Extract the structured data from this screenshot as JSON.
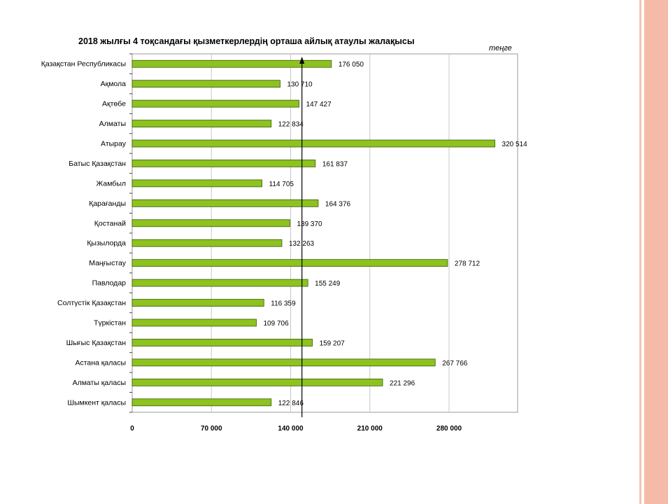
{
  "slide": {
    "accent_color": "#f6bba8",
    "line_color": "#f4c4b4"
  },
  "chart_data": {
    "type": "bar",
    "orientation": "horizontal",
    "title": "2018 жылғы  4  тоқсандағы қызметкерлердің орташа айлық атаулы жалақысы",
    "unit": "теңге",
    "categories": [
      "Қазақстан Республикасы",
      "Ақмола",
      "Ақтөбе",
      "Алматы",
      "Атырау",
      "Батыс Қазақстан",
      "Жамбыл",
      "Қарағанды",
      "Қостанай",
      "Қызылорда",
      "Маңғыстау",
      "Павлодар",
      "Солтүстік Қазақстан",
      "Түркістан",
      "Шығыс  Қазақстан",
      "Астана қаласы",
      "Алматы қаласы",
      "Шымкент қаласы"
    ],
    "values": [
      176050,
      130710,
      147427,
      122834,
      320514,
      161837,
      114705,
      164376,
      139370,
      132263,
      278712,
      155249,
      116359,
      109706,
      159207,
      267766,
      221296,
      122846
    ],
    "value_labels": [
      "176 050",
      "130 710",
      "147 427",
      "122 834",
      "320 514",
      "161 837",
      "114 705",
      "164 376",
      "139 370",
      "132 263",
      "278 712",
      "155 249",
      "116 359",
      "109 706",
      "159 207",
      "267 766",
      "221 296",
      "122 846"
    ],
    "x_ticks": [
      0,
      70000,
      140000,
      210000,
      280000
    ],
    "x_tick_labels": [
      "0",
      "70 000",
      "140 000",
      "210 000",
      "280 000"
    ],
    "xlim": [
      0,
      340000
    ],
    "reference_line": 150000,
    "bar_color": "#8dc21f",
    "bar_border": "#3b5a0a",
    "grid": true,
    "legend": "none"
  }
}
